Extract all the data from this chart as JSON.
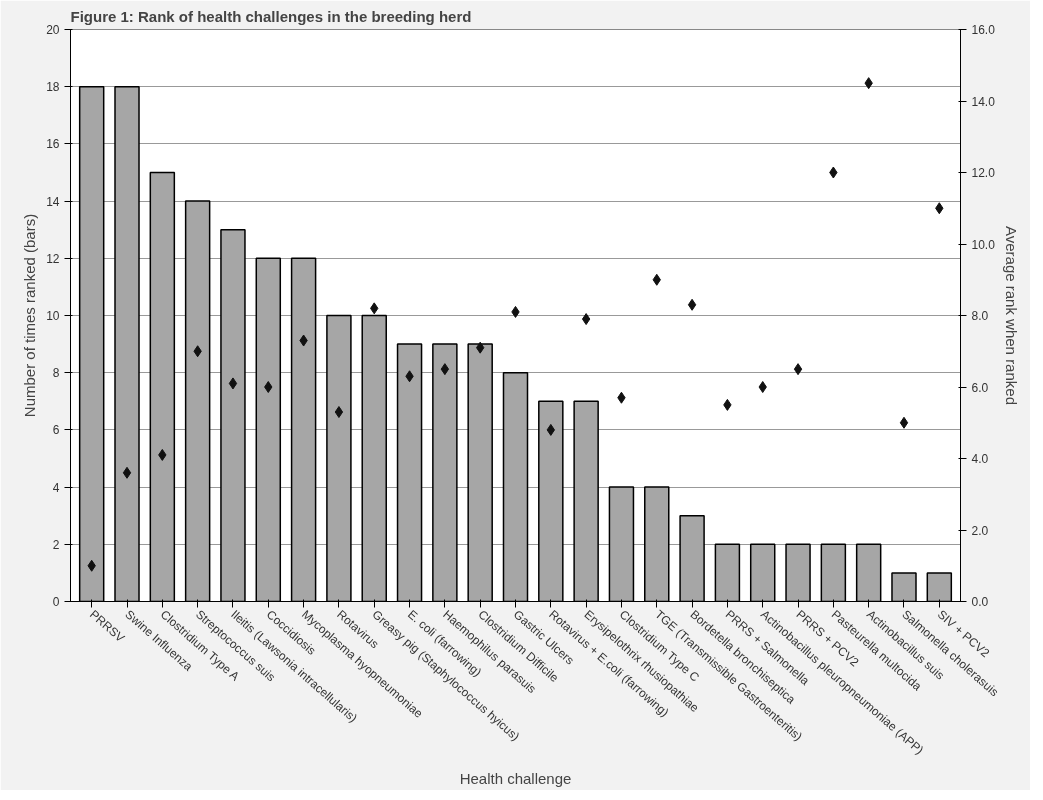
{
  "chart_data": {
    "type": "bar",
    "title": "Figure 1: Rank of health challenges in the breeding herd",
    "xlabel": "Health challenge",
    "ylabel": "Number of times ranked (bars)",
    "y2label": "Average rank when ranked",
    "categories": [
      "PRRSV",
      "Swine Influenza",
      "Clostridium Type A",
      "Streptococcus suis",
      "Ileitis (Lawsonia intracellularis)",
      "Coccidiosis",
      "Mycoplasma hyopneumoniae",
      "Rotavirus",
      "Greasy pig (Staphylococcus hyicus)",
      "E. coli (farrowing)",
      "Haemophilus parasuis",
      "Clostridium Difficile",
      "Gastric Ulcers",
      "Rotavirus + E.coli (farrowing)",
      "Erysipelothrix rhusiopathiae",
      "Clostridium Type C",
      "TGE (Transmissible Gastroenteritis)",
      "Bordetella bronchiseptica",
      "PRRS + Salmonella",
      "Actinobacillus pleuropneumoniae (APP)",
      "PRRS + PCV2",
      "Pasteurella multocida",
      "Actinobacillus suis",
      "Salmonella cholerasuis",
      "SIV + PCV2"
    ],
    "series": [
      {
        "color": "#a6a6a6",
        "values": [
          18,
          18,
          15,
          14,
          13,
          12,
          12,
          10,
          10,
          9,
          9,
          9,
          8,
          7,
          7,
          4,
          4,
          3,
          2,
          2,
          2,
          2,
          2,
          1,
          1
        ]
      },
      {
        "type": "scatter",
        "axis": "y2",
        "marker": "diamond",
        "color": "#111111",
        "values": [
          1.0,
          3.6,
          4.1,
          7.0,
          6.1,
          6.0,
          7.3,
          5.3,
          8.2,
          6.3,
          6.5,
          7.1,
          8.1,
          4.8,
          7.9,
          5.7,
          9.0,
          8.3,
          5.5,
          6.0,
          6.5,
          12.0,
          14.5,
          5.0,
          11.0
        ]
      }
    ],
    "ylim": [
      0,
      20
    ],
    "yticks": [
      0,
      2,
      4,
      6,
      8,
      10,
      12,
      14,
      16,
      18,
      20
    ],
    "y2lim": [
      0,
      16
    ],
    "y2ticks": [
      {
        "value": 0,
        "label": "0.0"
      },
      {
        "value": 2,
        "label": "2.0"
      },
      {
        "value": 4,
        "label": "4.0"
      },
      {
        "value": 6,
        "label": "6.0"
      },
      {
        "value": 8,
        "label": "8.0"
      },
      {
        "value": 10,
        "label": "10.0"
      },
      {
        "value": 12,
        "label": "12.0"
      },
      {
        "value": 14,
        "label": "14.0"
      },
      {
        "value": 16,
        "label": "16.0"
      }
    ],
    "grid": "y"
  }
}
